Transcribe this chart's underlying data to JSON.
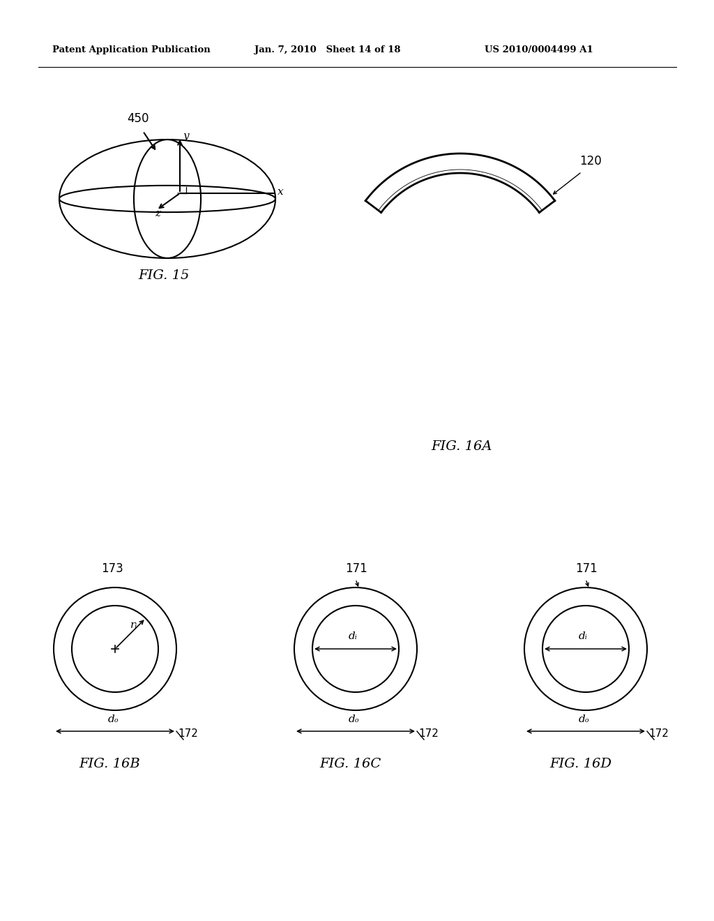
{
  "bg_color": "#ffffff",
  "line_color": "#000000",
  "header_left": "Patent Application Publication",
  "header_mid": "Jan. 7, 2010   Sheet 14 of 18",
  "header_right": "US 2010/0004499 A1",
  "fig15_label": "FIG. 15",
  "fig15_ref": "450",
  "fig16a_label": "FIG. 16A",
  "fig16a_ref": "120",
  "fig16b_label": "FIG. 16B",
  "fig16c_label": "FIG. 16C",
  "fig16d_label": "FIG. 16D",
  "ref_173": "173",
  "ref_172a": "172",
  "ref_172b": "172",
  "ref_172c": "172",
  "ref_171a": "171",
  "ref_171b": "171",
  "ref_ri": "rᵢ",
  "ref_di_b": "dᵢ",
  "ref_di_c": "dᵢ",
  "ref_do_b": "dₒ",
  "ref_do_c": "dₒ",
  "ref_do_d": "dₒ"
}
